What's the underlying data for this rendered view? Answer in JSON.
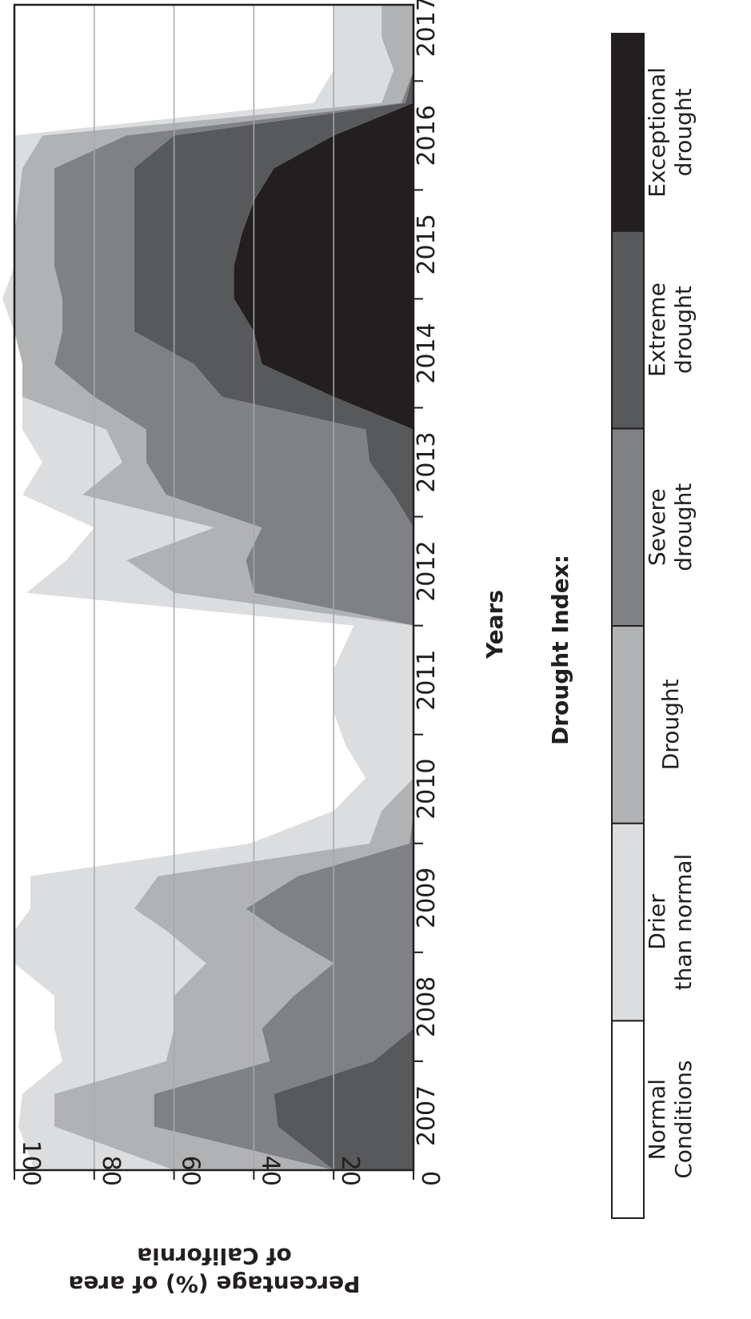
{
  "chart_data": {
    "type": "area",
    "stacked": true,
    "title": "",
    "xlabel": "Years",
    "ylabel": "Percentage (%) of area of California",
    "ylim": [
      0,
      100
    ],
    "yticks": [
      "0",
      "20",
      "40",
      "60",
      "80",
      "100"
    ],
    "xticks": [
      "2007",
      "2008",
      "2009",
      "2010",
      "2011",
      "2012",
      "2013",
      "2014",
      "2015",
      "2016",
      "2017"
    ],
    "grid": "horizontal",
    "legend": {
      "title": "Drought Index:",
      "placement": "bottom",
      "items": [
        {
          "label": "Normal Conditions",
          "color": "#ffffff"
        },
        {
          "label": "Drier than normal",
          "color": "#dcdddf"
        },
        {
          "label": "Drought",
          "color": "#b1b2b4"
        },
        {
          "label": "Severe drought",
          "color": "#808184"
        },
        {
          "label": "Extreme drought",
          "color": "#58595b"
        },
        {
          "label": "Exceptional drought",
          "color": "#231f20"
        }
      ]
    },
    "x": [
      2006.6,
      2007.0,
      2007.3,
      2007.6,
      2007.9,
      2008.2,
      2008.5,
      2008.8,
      2009.0,
      2009.3,
      2009.6,
      2009.9,
      2010.2,
      2010.5,
      2010.8,
      2011.2,
      2011.6,
      2011.9,
      2012.2,
      2012.5,
      2012.8,
      2013.1,
      2013.4,
      2013.7,
      2014.0,
      2014.3,
      2014.6,
      2014.9,
      2015.2,
      2015.5,
      2015.8,
      2016.1,
      2016.4,
      2016.7,
      2017.0,
      2017.3
    ],
    "series": [
      {
        "name": "Exceptional drought",
        "values": [
          0,
          0,
          0,
          0,
          0,
          0,
          0,
          0,
          0,
          0,
          0,
          0,
          0,
          0,
          0,
          0,
          0,
          0,
          0,
          0,
          0,
          0,
          0,
          20,
          38,
          40,
          45,
          45,
          43,
          40,
          35,
          20,
          0,
          0,
          0,
          0
        ]
      },
      {
        "name": "Extreme drought",
        "values": [
          20,
          34,
          35,
          10,
          0,
          0,
          0,
          0,
          0,
          0,
          0,
          0,
          0,
          0,
          0,
          0,
          0,
          0,
          0,
          0,
          5,
          11,
          12,
          28,
          17,
          30,
          25,
          25,
          27,
          30,
          35,
          40,
          2,
          0,
          0,
          0
        ]
      },
      {
        "name": "Severe drought",
        "values": [
          0,
          31,
          30,
          26,
          38,
          30,
          20,
          34,
          42,
          29,
          1,
          0,
          0,
          0,
          0,
          0,
          0,
          40,
          42,
          38,
          57,
          56,
          55,
          32,
          35,
          18,
          18,
          20,
          20,
          20,
          20,
          12,
          1,
          0,
          0,
          0
        ]
      },
      {
        "name": "Drought",
        "values": [
          40,
          25,
          25,
          26,
          22,
          30,
          32,
          28,
          28,
          35,
          10,
          8,
          0,
          0,
          0,
          0,
          0,
          20,
          30,
          12,
          21,
          6,
          10,
          18,
          8,
          12,
          12,
          10,
          10,
          9,
          8,
          21,
          5,
          5,
          8,
          8
        ]
      },
      {
        "name": "Drier than normal",
        "values": [
          35,
          9,
          8,
          26,
          30,
          30,
          48,
          38,
          26,
          32,
          30,
          12,
          12,
          17,
          20,
          20,
          15,
          37,
          15,
          30,
          15,
          20,
          21,
          0,
          0,
          0,
          3,
          0,
          0,
          1,
          2,
          7,
          17,
          15,
          12,
          12
        ]
      },
      {
        "name": "Normal Conditions",
        "values": [
          5,
          1,
          2,
          12,
          10,
          10,
          0,
          0,
          4,
          4,
          59,
          80,
          88,
          83,
          80,
          80,
          85,
          3,
          13,
          20,
          2,
          7,
          2,
          2,
          2,
          0,
          0,
          0,
          0,
          0,
          0,
          0,
          75,
          80,
          80,
          80
        ]
      }
    ]
  }
}
